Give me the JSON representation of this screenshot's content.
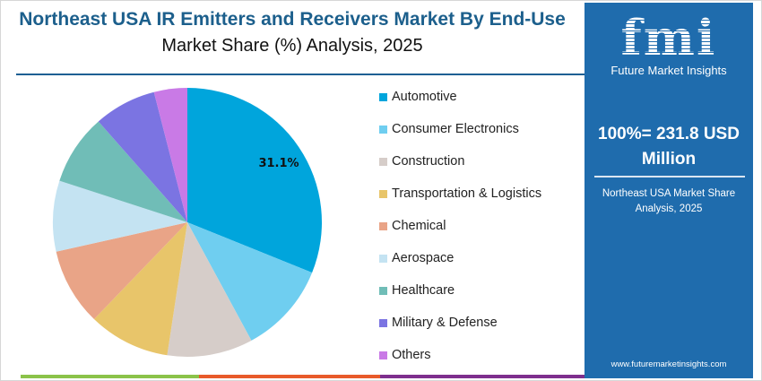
{
  "header": {
    "title": "Northeast USA IR Emitters and Receivers Market By End-Use",
    "subtitle": "Market Share (%) Analysis, 2025"
  },
  "chart_data": {
    "type": "pie",
    "start": "12 o'clock, clockwise",
    "categories": [
      "Automotive",
      "Consumer Electronics",
      "Construction",
      "Transportation & Logistics",
      "Chemical",
      "Aerospace",
      "Healthcare",
      "Military & Defense",
      "Others"
    ],
    "values": [
      31.1,
      11.0,
      10.3,
      9.8,
      9.3,
      8.5,
      8.5,
      7.5,
      4.0
    ],
    "colors": [
      "#00a5dc",
      "#6fcef0",
      "#d6cdc9",
      "#e8c56a",
      "#e9a487",
      "#c4e3f2",
      "#70bdb7",
      "#7b74e2",
      "#c97ae6"
    ],
    "data_labels": [
      {
        "category": "Automotive",
        "text": "31.1%"
      }
    ],
    "legend_position": "right"
  },
  "panel": {
    "logo_text": "fmi",
    "logo_subtitle": "Future Market Insights",
    "total": "100%= 231.8 USD Million",
    "caption": "Northeast USA Market Share Analysis, 2025",
    "website": "www.futuremarketinsights.com",
    "background": "#1f6cad"
  },
  "footer_bar_colors": [
    "#8bc34a",
    "#e85a2a",
    "#7e2f8e"
  ]
}
